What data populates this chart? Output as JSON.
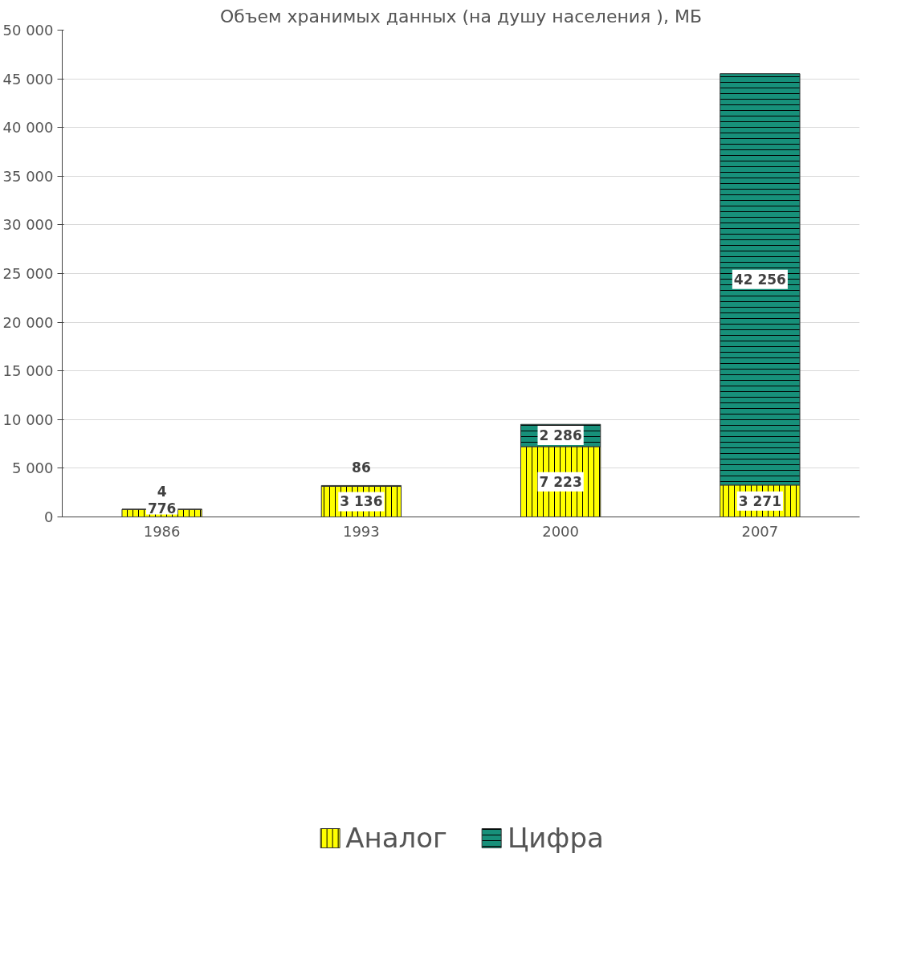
{
  "chart_data": {
    "type": "bar",
    "stacked": true,
    "title": "Объем хранимых данных (на душу населения ), МБ",
    "categories": [
      "1986",
      "1993",
      "2000",
      "2007"
    ],
    "series": [
      {
        "name": "Аналог",
        "color": "#ffff00",
        "values": [
          776,
          3136,
          7223,
          3271
        ],
        "value_labels": [
          "776",
          "3 136",
          "7 223",
          "3 271"
        ]
      },
      {
        "name": "Цифра",
        "color": "#17907a",
        "values": [
          4,
          86,
          2286,
          42256
        ],
        "value_labels": [
          "4",
          "86",
          "2 286",
          "42 256"
        ]
      }
    ],
    "ylim": [
      0,
      50000
    ],
    "yticks": [
      0,
      {
        "value": 5000,
        "label": "5 000"
      },
      {
        "value": 10000,
        "label": "10 000"
      },
      {
        "value": 15000,
        "label": "15 000"
      },
      {
        "value": 20000,
        "label": "20 000"
      },
      {
        "value": 25000,
        "label": "25 000"
      },
      {
        "value": 30000,
        "label": "30 000"
      },
      {
        "value": 35000,
        "label": "35 000"
      },
      {
        "value": 40000,
        "label": "40 000"
      },
      {
        "value": 45000,
        "label": "45 000"
      },
      {
        "value": 50000,
        "label": "50 000"
      }
    ],
    "grid": "y",
    "legend": "bottom"
  }
}
